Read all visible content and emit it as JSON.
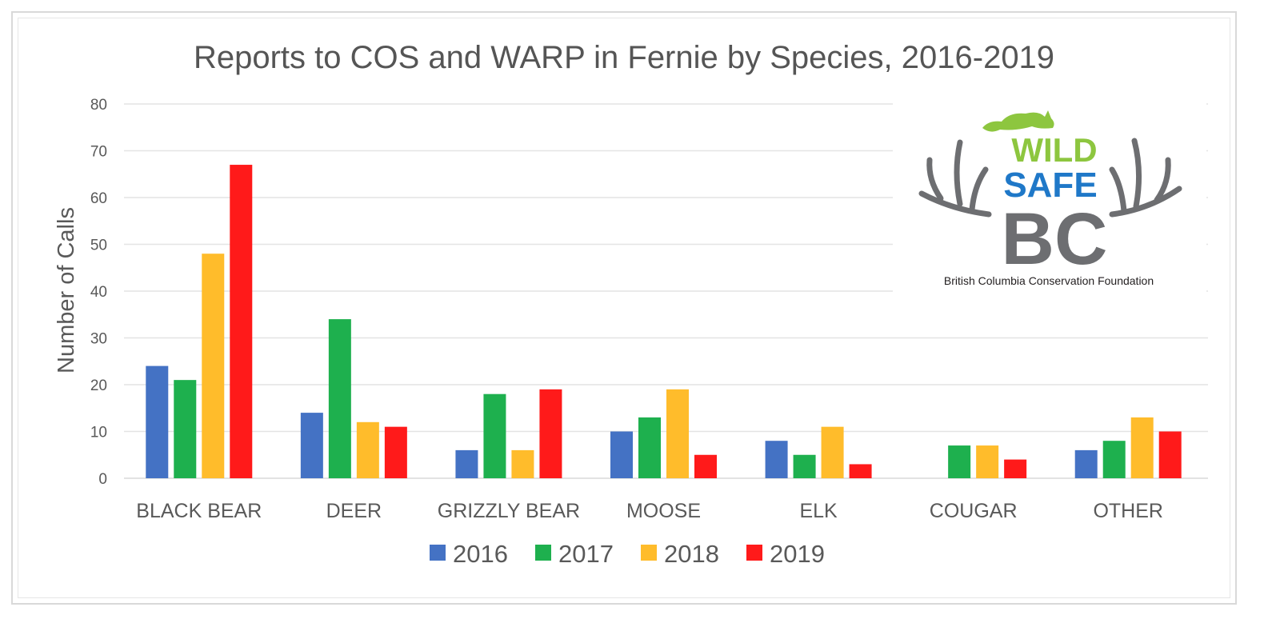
{
  "chart_data": {
    "type": "bar",
    "title": "Reports to COS and WARP in Fernie by Species, 2016-2019",
    "xlabel": "",
    "ylabel": "Number of Calls",
    "ylim": [
      0,
      80
    ],
    "yticks": [
      0,
      10,
      20,
      30,
      40,
      50,
      60,
      70,
      80
    ],
    "grid": true,
    "legend_position": "bottom",
    "categories": [
      "BLACK BEAR",
      "DEER",
      "GRIZZLY BEAR",
      "MOOSE",
      "ELK",
      "COUGAR",
      "OTHER"
    ],
    "series": [
      {
        "name": "2016",
        "color": "#4472c4",
        "values": [
          24,
          14,
          6,
          10,
          8,
          0,
          6
        ]
      },
      {
        "name": "2017",
        "color": "#1eb04e",
        "values": [
          21,
          34,
          18,
          13,
          5,
          7,
          8
        ]
      },
      {
        "name": "2018",
        "color": "#ffbc2b",
        "values": [
          48,
          12,
          6,
          19,
          11,
          7,
          13
        ]
      },
      {
        "name": "2019",
        "color": "#ff1a1a",
        "values": [
          67,
          11,
          19,
          5,
          3,
          4,
          10
        ]
      }
    ]
  },
  "logo": {
    "word_top": "WILD",
    "word_mid": "SAFE",
    "word_bottom": "BC",
    "caption": "British Columbia Conservation Foundation",
    "colors": {
      "wild": "#8dc63f",
      "safe": "#1f78c8",
      "bc": "#6d6e71"
    }
  }
}
